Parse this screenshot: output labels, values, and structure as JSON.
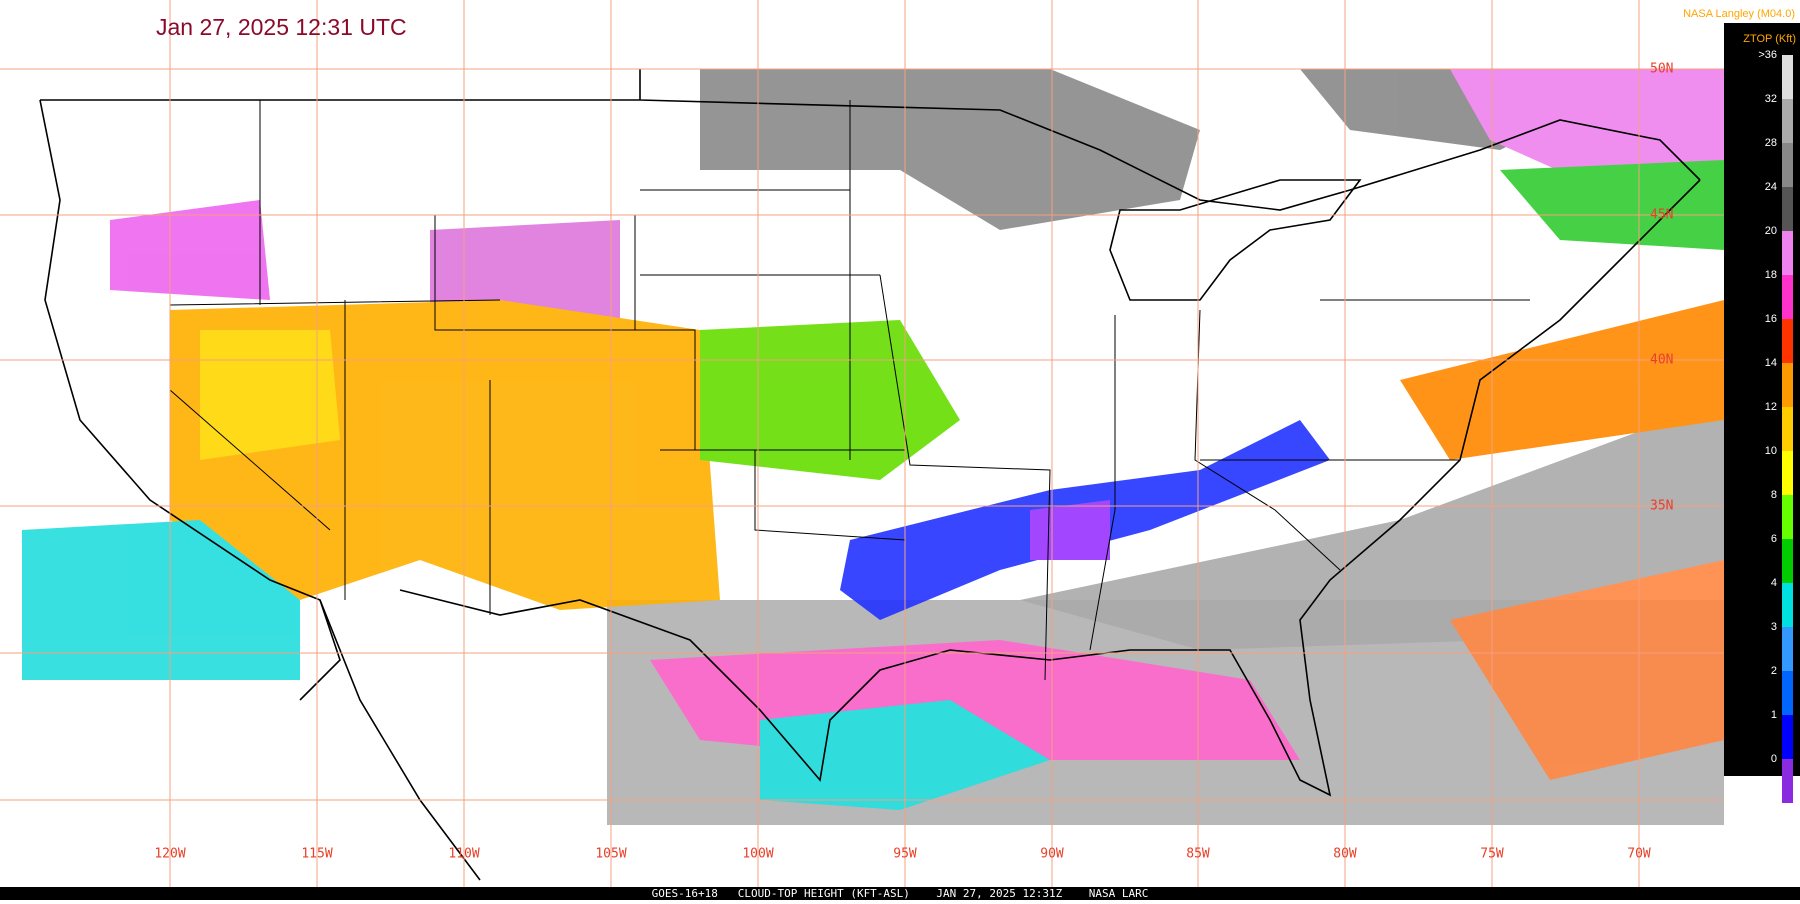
{
  "header": {
    "title": "Jan 27, 2025 12:31 UTC",
    "brand": "NASA Langley (M04.0)"
  },
  "legend": {
    "title": "ZTOP (Kft)",
    "labels": [
      ">36",
      "32",
      "28",
      "24",
      "20",
      "18",
      "16",
      "14",
      "12",
      "10",
      "8",
      "6",
      "4",
      "3",
      "2",
      "1",
      "0"
    ]
  },
  "map": {
    "latitude_labels": [
      "50N",
      "45N",
      "40N",
      "35N"
    ],
    "longitude_labels": [
      "120W",
      "115W",
      "110W",
      "105W",
      "100W",
      "95W",
      "90W",
      "85W",
      "80W",
      "75W",
      "70W"
    ]
  },
  "footer": {
    "caption": "GOES-16+18   CLOUD-TOP HEIGHT (KFT-ASL)    JAN 27, 2025 12:31Z    NASA LARC"
  }
}
